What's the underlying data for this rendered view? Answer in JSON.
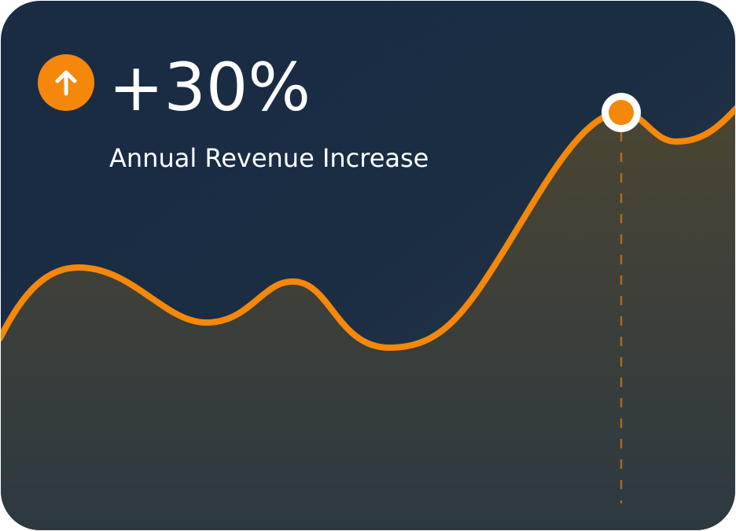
{
  "stat": {
    "value": "+30%",
    "label": "Annual Revenue Increase"
  }
}
